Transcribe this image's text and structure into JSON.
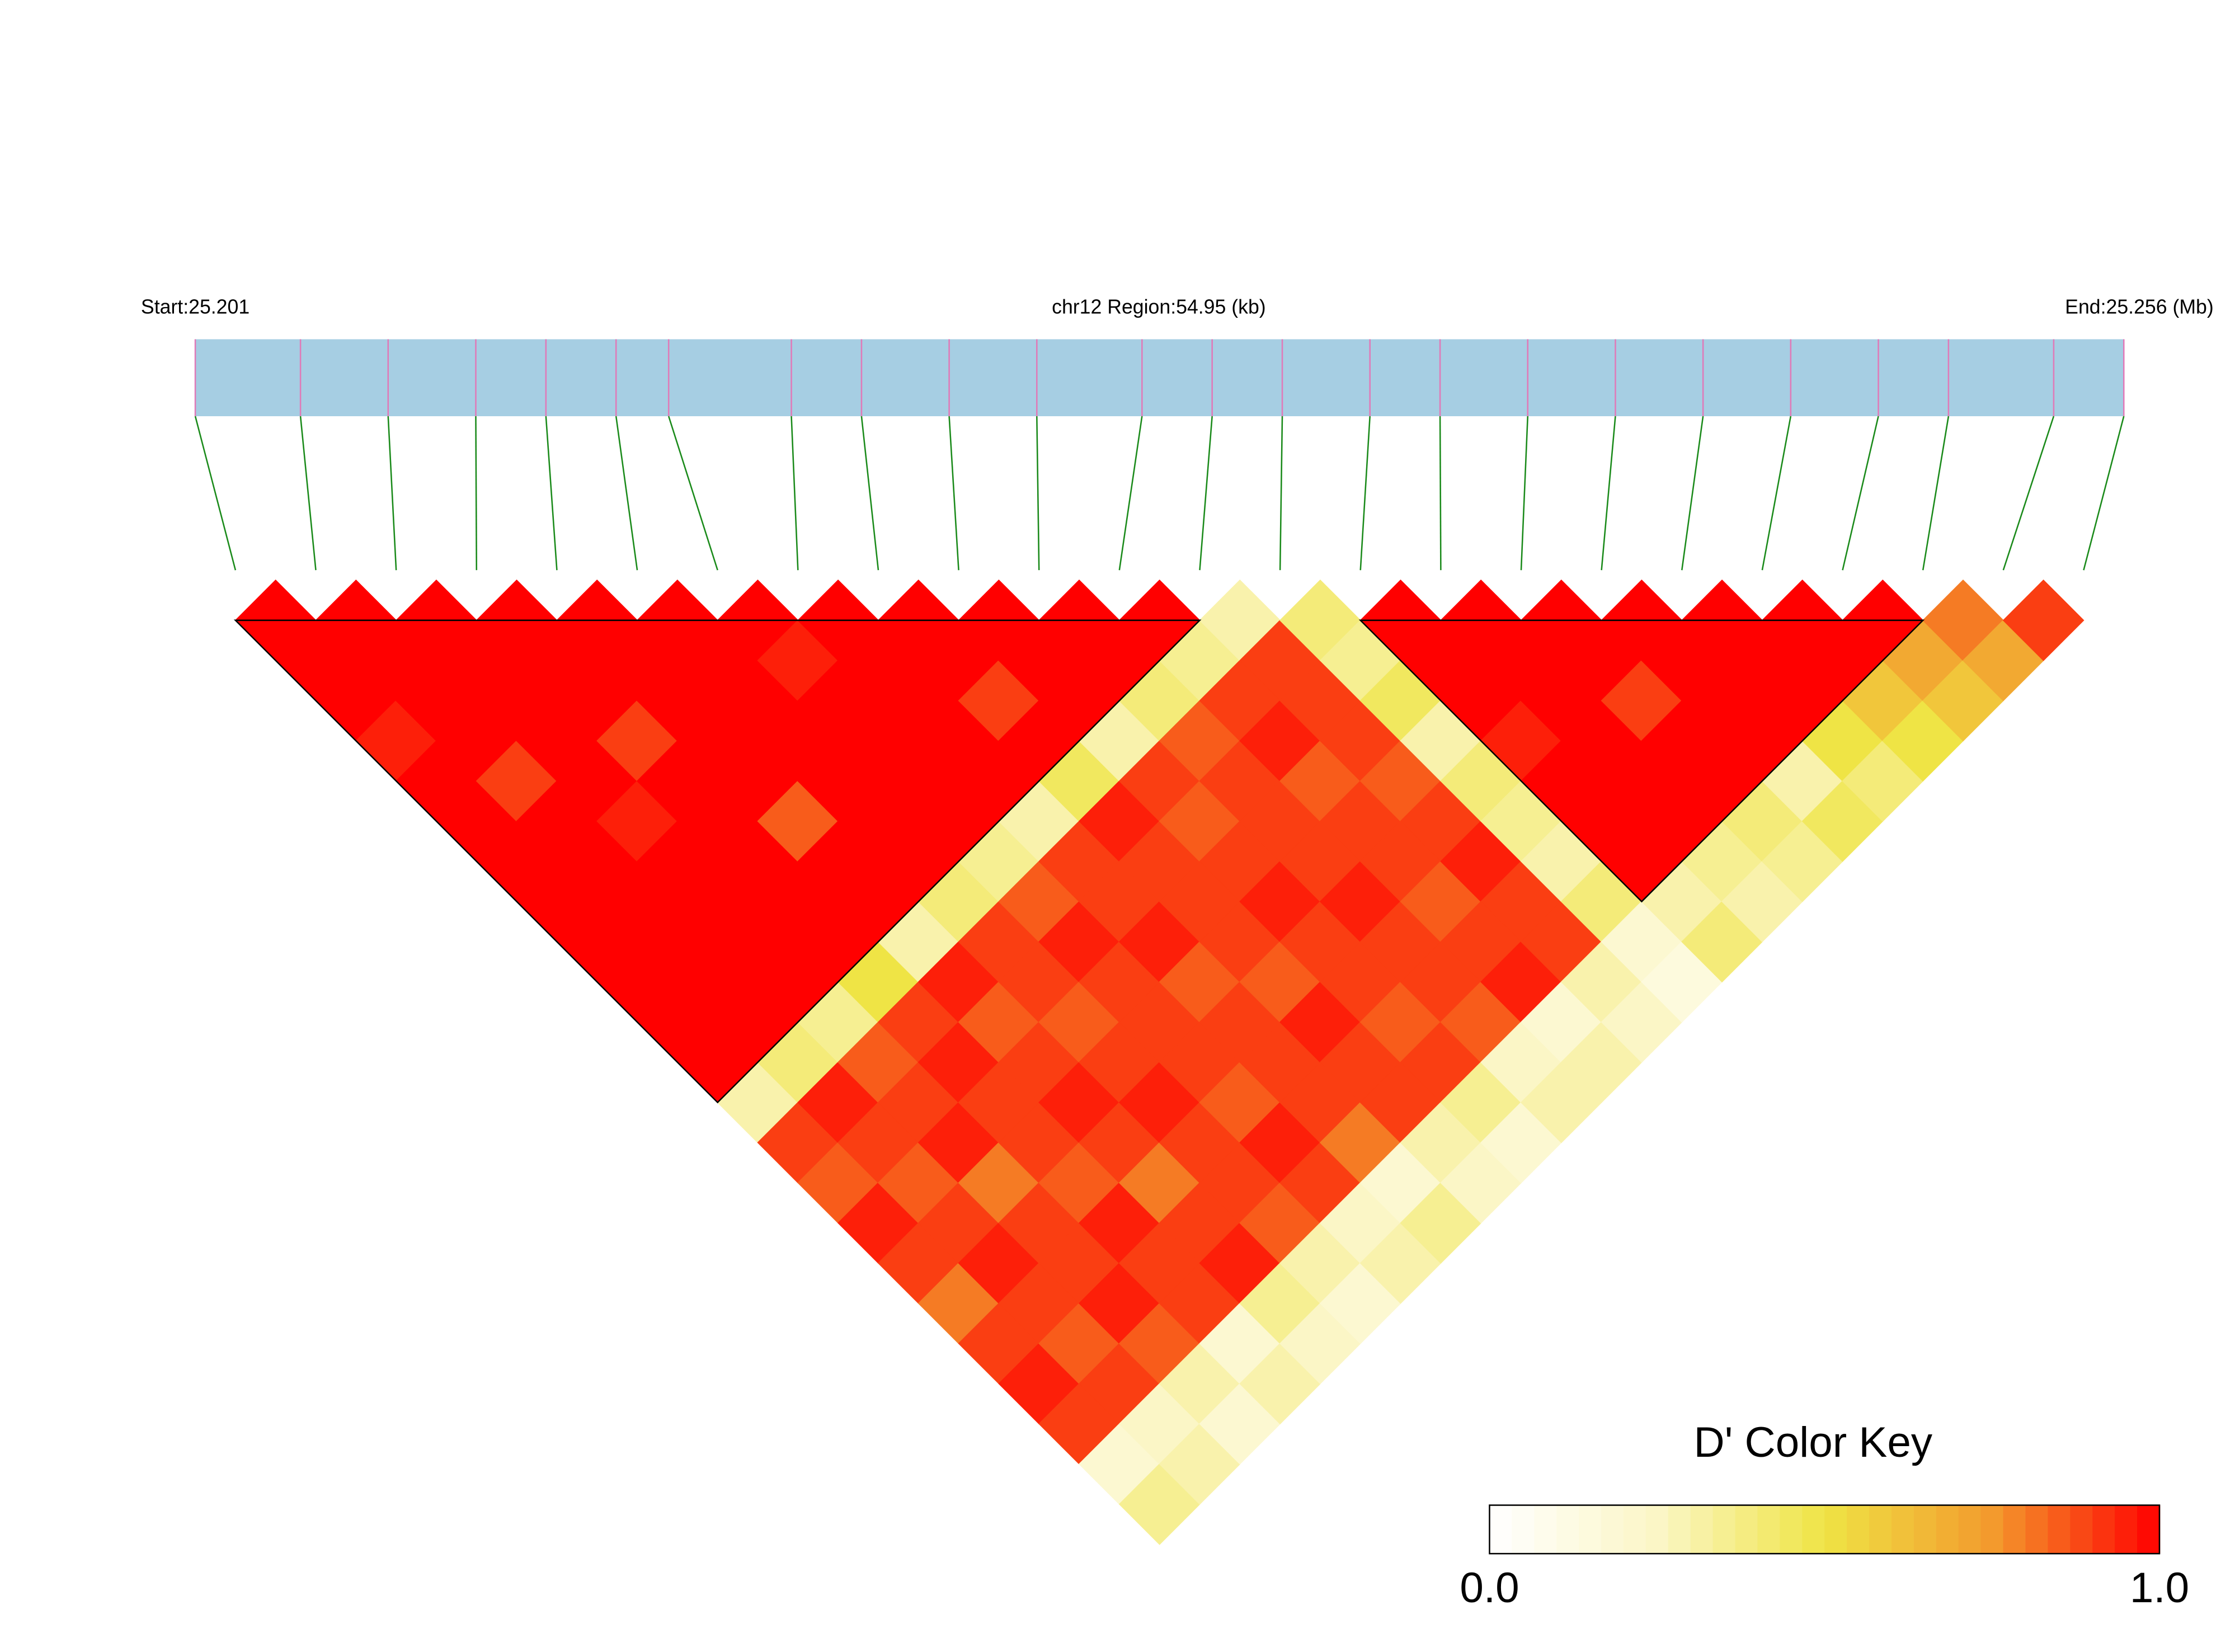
{
  "chart_data": {
    "type": "ld_heatmap",
    "start_label": "Start:25.201",
    "region_label": "chr12 Region:54.95 (kb)",
    "end_label": "End:25.256 (Mb)",
    "xlim": [
      25.201,
      25.256
    ],
    "snp_positions": [
      25.201,
      25.204,
      25.2065,
      25.209,
      25.211,
      25.213,
      25.2145,
      25.218,
      25.22,
      25.2225,
      25.225,
      25.228,
      25.23,
      25.232,
      25.2345,
      25.2365,
      25.239,
      25.2415,
      25.244,
      25.2465,
      25.249,
      25.251,
      25.254,
      25.256
    ],
    "ld_matrix": [
      [
        1,
        1,
        1,
        0.95,
        1,
        1,
        1,
        1,
        1,
        1,
        1,
        1,
        0.3,
        0.9,
        0.85,
        0.95,
        0.9,
        0.8,
        0.9,
        0.95,
        0.9,
        0.2,
        0.35
      ],
      [
        1,
        1,
        1,
        1,
        0.9,
        1,
        1,
        1,
        1,
        1,
        1,
        0.4,
        0.95,
        0.9,
        0.85,
        0.9,
        0.95,
        0.9,
        0.85,
        0.9,
        0.25,
        0.3
      ],
      [
        1,
        1,
        1,
        1,
        1,
        0.95,
        1,
        1,
        1,
        1,
        0.35,
        0.85,
        0.9,
        0.95,
        0.8,
        0.9,
        0.9,
        0.95,
        0.85,
        0.3,
        0.2
      ],
      [
        1,
        1,
        1,
        0.9,
        1,
        1,
        1,
        1,
        1,
        0.5,
        0.9,
        0.95,
        0.9,
        0.9,
        0.85,
        0.95,
        0.9,
        0.9,
        0.2,
        0.3
      ],
      [
        1,
        1,
        1,
        1,
        1,
        0.85,
        1,
        1,
        0.3,
        0.95,
        0.85,
        0.9,
        0.95,
        0.9,
        0.8,
        0.9,
        0.95,
        0.35,
        0.25
      ],
      [
        1,
        1,
        1,
        1,
        1,
        1,
        1,
        0.4,
        0.9,
        0.9,
        0.85,
        0.9,
        0.95,
        0.9,
        0.9,
        0.85,
        0.3,
        0.2
      ],
      [
        1,
        0.95,
        1,
        1,
        1,
        1,
        0.35,
        0.85,
        0.95,
        0.9,
        0.9,
        0.9,
        0.85,
        0.95,
        0.9,
        0.25,
        0.3
      ],
      [
        1,
        1,
        1,
        1,
        1,
        0.3,
        0.9,
        0.9,
        0.95,
        0.85,
        0.9,
        0.9,
        0.9,
        0.8,
        0.2,
        0.35
      ],
      [
        1,
        1,
        0.9,
        1,
        0.45,
        0.95,
        0.9,
        0.9,
        0.9,
        0.85,
        0.95,
        0.9,
        0.9,
        0.3,
        0.25
      ],
      [
        1,
        1,
        1,
        0.3,
        0.9,
        0.85,
        0.9,
        0.95,
        0.9,
        0.9,
        0.85,
        0.9,
        0.35,
        0.2
      ],
      [
        1,
        1,
        0.4,
        0.85,
        0.9,
        0.9,
        0.9,
        0.95,
        0.9,
        0.9,
        0.85,
        0.25,
        0.3
      ],
      [
        1,
        0.35,
        0.9,
        0.95,
        0.85,
        0.9,
        0.9,
        0.85,
        0.9,
        0.95,
        0.2,
        0.3
      ],
      [
        0.3,
        0.9,
        0.9,
        0.9,
        0.85,
        0.9,
        0.95,
        0.9,
        0.9,
        0.3,
        0.25
      ],
      [
        0.4,
        0.35,
        0.45,
        0.3,
        0.4,
        0.35,
        0.3,
        0.4,
        0.2,
        0.15
      ],
      [
        1,
        1,
        1,
        0.95,
        1,
        1,
        1,
        0.3,
        0.4
      ],
      [
        1,
        1,
        1,
        1,
        1,
        1,
        0.35,
        0.3
      ],
      [
        1,
        1,
        0.9,
        1,
        1,
        0.4,
        0.35
      ],
      [
        1,
        1,
        1,
        1,
        0.3,
        0.45
      ],
      [
        1,
        1,
        1,
        0.5,
        0.4
      ],
      [
        1,
        1,
        0.6,
        0.5
      ],
      [
        1,
        0.7,
        0.6
      ],
      [
        0.8,
        0.7
      ],
      [
        0.9
      ]
    ],
    "blocks": [
      [
        0,
        12
      ],
      [
        14,
        21
      ]
    ],
    "color_scale": [
      "#ffffff",
      "#fbf6c6",
      "#efe445",
      "#f39a2d",
      "#ff0000"
    ],
    "key_title": "D' Color Key",
    "key_lim": [
      0,
      1
    ],
    "key_ticks": [
      {
        "value": 0,
        "label": "0.0"
      },
      {
        "value": 1,
        "label": "1.0"
      }
    ]
  }
}
